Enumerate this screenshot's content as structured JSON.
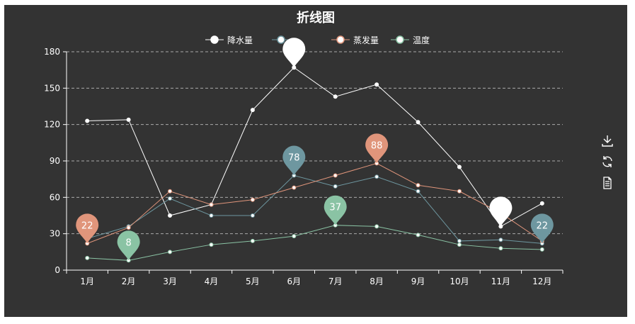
{
  "chart_data": {
    "type": "line",
    "title": "折线图",
    "categories": [
      "1月",
      "2月",
      "3月",
      "4月",
      "5月",
      "6月",
      "7月",
      "8月",
      "9月",
      "10月",
      "11月",
      "12月"
    ],
    "ylim": [
      0,
      180
    ],
    "yticks": [
      0,
      30,
      60,
      90,
      120,
      150,
      180
    ],
    "grid": "horizontal-dashed",
    "legend_position": "top-center",
    "series": [
      {
        "name": "降水量",
        "color": "#ffffff",
        "values": [
          123,
          124,
          45,
          54,
          132,
          167,
          143,
          153,
          122,
          85,
          36,
          55
        ],
        "markers": {
          "max": 167,
          "min": 36
        }
      },
      {
        "name": "蒸发量",
        "label_hidden": true,
        "color": "#6e97a0",
        "values": [
          26,
          36,
          59,
          45,
          45,
          78,
          69,
          77,
          65,
          24,
          25,
          22
        ],
        "markers": {
          "max": 78,
          "min": 22
        }
      },
      {
        "name": "蒸发量",
        "color": "#e0957b",
        "values": [
          22,
          35,
          65,
          54,
          58,
          68,
          78,
          88,
          70,
          65,
          47,
          24
        ],
        "markers": {
          "max": 88,
          "min": 22
        }
      },
      {
        "name": "温度",
        "color": "#8ac3a4",
        "values": [
          10,
          8,
          15,
          21,
          24,
          28,
          37,
          36,
          29,
          21,
          18,
          17
        ],
        "markers": {
          "max": 37,
          "min": 8
        }
      }
    ]
  },
  "toolbox": {
    "icons": [
      "download-icon",
      "refresh-icon",
      "data-view-icon"
    ]
  }
}
